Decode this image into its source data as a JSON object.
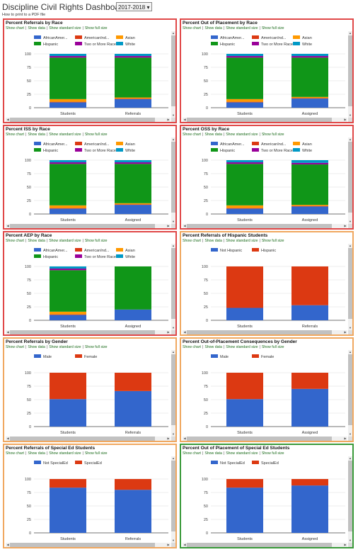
{
  "header": {
    "title": "Discipline Civil Rights Dashboard",
    "year_selected": "2017-2018",
    "pdf_link": "How to print to a PDF file"
  },
  "links": {
    "show_chart": "Show chart",
    "show_data": "Show data",
    "show_standard_size": "Show standard size",
    "show_full_size": "Show full size"
  },
  "colors": {
    "red_border": "#e04848",
    "orange_border": "#f0a860",
    "green_border": "#3a9a3a"
  },
  "panels": [
    {
      "title": "Percent Referrals by Race",
      "border": "red",
      "chart_data": {
        "type": "bar",
        "stacked": true,
        "categories": [
          "Students",
          "Referrals"
        ],
        "series": [
          {
            "name": "AfricanAmer...",
            "color": "#3366cc",
            "values": [
              10,
              16
            ]
          },
          {
            "name": "AmericanInd...",
            "color": "#dc3912",
            "values": [
              1,
              1
            ]
          },
          {
            "name": "Asian",
            "color": "#ff9900",
            "values": [
              5,
              2
            ]
          },
          {
            "name": "Hispanic",
            "color": "#109618",
            "values": [
              77,
              74
            ]
          },
          {
            "name": "Two or More Races",
            "color": "#990099",
            "values": [
              3,
              3
            ]
          },
          {
            "name": "White",
            "color": "#0099c6",
            "values": [
              4,
              4
            ]
          }
        ],
        "yticks": [
          0,
          25,
          50,
          75,
          100
        ],
        "ylim": [
          0,
          100
        ]
      }
    },
    {
      "title": "Percent Out of Placement by Race",
      "border": "red",
      "chart_data": {
        "type": "bar",
        "stacked": true,
        "categories": [
          "Students",
          "Assigned"
        ],
        "series": [
          {
            "name": "AfricanAmer...",
            "color": "#3366cc",
            "values": [
              10,
              17
            ]
          },
          {
            "name": "AmericanInd...",
            "color": "#dc3912",
            "values": [
              1,
              1
            ]
          },
          {
            "name": "Asian",
            "color": "#ff9900",
            "values": [
              5,
              2
            ]
          },
          {
            "name": "Hispanic",
            "color": "#109618",
            "values": [
              77,
              73
            ]
          },
          {
            "name": "Two or More Races",
            "color": "#990099",
            "values": [
              3,
              3
            ]
          },
          {
            "name": "White",
            "color": "#0099c6",
            "values": [
              4,
              4
            ]
          }
        ],
        "yticks": [
          0,
          25,
          50,
          75,
          100
        ],
        "ylim": [
          0,
          100
        ]
      }
    },
    {
      "title": "Percent ISS by Race",
      "border": "red",
      "chart_data": {
        "type": "bar",
        "stacked": true,
        "categories": [
          "Students",
          "Assigned"
        ],
        "series": [
          {
            "name": "AfricanAmer...",
            "color": "#3366cc",
            "values": [
              10,
              17
            ]
          },
          {
            "name": "AmericanInd...",
            "color": "#dc3912",
            "values": [
              1,
              1
            ]
          },
          {
            "name": "Asian",
            "color": "#ff9900",
            "values": [
              5,
              2
            ]
          },
          {
            "name": "Hispanic",
            "color": "#109618",
            "values": [
              77,
              73
            ]
          },
          {
            "name": "Two or More Races",
            "color": "#990099",
            "values": [
              3,
              3
            ]
          },
          {
            "name": "White",
            "color": "#0099c6",
            "values": [
              4,
              4
            ]
          }
        ],
        "yticks": [
          0,
          25,
          50,
          75,
          100
        ],
        "ylim": [
          0,
          100
        ]
      }
    },
    {
      "title": "Percent OSS by Race",
      "border": "red",
      "chart_data": {
        "type": "bar",
        "stacked": true,
        "categories": [
          "Students",
          "Assigned"
        ],
        "series": [
          {
            "name": "AfricanAmer...",
            "color": "#3366cc",
            "values": [
              10,
              14
            ]
          },
          {
            "name": "AmericanInd...",
            "color": "#dc3912",
            "values": [
              1,
              1
            ]
          },
          {
            "name": "Asian",
            "color": "#ff9900",
            "values": [
              5,
              2
            ]
          },
          {
            "name": "Hispanic",
            "color": "#109618",
            "values": [
              77,
              75
            ]
          },
          {
            "name": "Two or More Races",
            "color": "#990099",
            "values": [
              3,
              3
            ]
          },
          {
            "name": "White",
            "color": "#0099c6",
            "values": [
              4,
              5
            ]
          }
        ],
        "yticks": [
          0,
          25,
          50,
          75,
          100
        ],
        "ylim": [
          0,
          100
        ]
      }
    },
    {
      "title": "Percent AEP by Race",
      "border": "red",
      "chart_data": {
        "type": "bar",
        "stacked": true,
        "categories": [
          "Students",
          "Assigned"
        ],
        "series": [
          {
            "name": "AfricanAmer...",
            "color": "#3366cc",
            "values": [
              10,
              20
            ]
          },
          {
            "name": "AmericanInd...",
            "color": "#dc3912",
            "values": [
              1,
              0
            ]
          },
          {
            "name": "Asian",
            "color": "#ff9900",
            "values": [
              5,
              0
            ]
          },
          {
            "name": "Hispanic",
            "color": "#109618",
            "values": [
              77,
              80
            ]
          },
          {
            "name": "Two or More Races",
            "color": "#990099",
            "values": [
              3,
              0
            ]
          },
          {
            "name": "White",
            "color": "#0099c6",
            "values": [
              4,
              0
            ]
          }
        ],
        "yticks": [
          0,
          25,
          50,
          75,
          100
        ],
        "ylim": [
          0,
          100
        ]
      }
    },
    {
      "title": "Percent Referrals of Hispanic Students",
      "border": "orange",
      "chart_data": {
        "type": "bar",
        "stacked": true,
        "categories": [
          "Students",
          "Referrals"
        ],
        "series": [
          {
            "name": "Not Hispanic",
            "color": "#3366cc",
            "values": [
              23,
              28
            ]
          },
          {
            "name": "Hispanic",
            "color": "#dc3912",
            "values": [
              77,
              72
            ]
          }
        ],
        "yticks": [
          0,
          25,
          50,
          75,
          100
        ],
        "ylim": [
          0,
          100
        ]
      }
    },
    {
      "title": "Percent Referrals by Gender",
      "border": "orange",
      "chart_data": {
        "type": "bar",
        "stacked": true,
        "categories": [
          "Students",
          "Referrals"
        ],
        "series": [
          {
            "name": "Male",
            "color": "#3366cc",
            "values": [
              51,
              66
            ]
          },
          {
            "name": "Female",
            "color": "#dc3912",
            "values": [
              49,
              34
            ]
          }
        ],
        "yticks": [
          0,
          25,
          50,
          75,
          100
        ],
        "ylim": [
          0,
          100
        ]
      }
    },
    {
      "title": "Percent Out-of-Placement Consequences by Gender",
      "border": "orange",
      "chart_data": {
        "type": "bar",
        "stacked": true,
        "categories": [
          "Students",
          "Assigned"
        ],
        "series": [
          {
            "name": "Male",
            "color": "#3366cc",
            "values": [
              51,
              70
            ]
          },
          {
            "name": "Female",
            "color": "#dc3912",
            "values": [
              49,
              30
            ]
          }
        ],
        "yticks": [
          0,
          25,
          50,
          75,
          100
        ],
        "ylim": [
          0,
          100
        ]
      }
    },
    {
      "title": "Percent Referrals of Special Ed Students",
      "border": "orange",
      "chart_data": {
        "type": "bar",
        "stacked": true,
        "categories": [
          "Students",
          "Referrals"
        ],
        "series": [
          {
            "name": "Not SpecialEd",
            "color": "#3366cc",
            "values": [
              84,
              80
            ]
          },
          {
            "name": "SpecialEd",
            "color": "#dc3912",
            "values": [
              16,
              20
            ]
          }
        ],
        "yticks": [
          0,
          25,
          50,
          75,
          100
        ],
        "ylim": [
          0,
          100
        ]
      }
    },
    {
      "title": "Percent Out of Placement of Special Ed Students",
      "border": "green",
      "chart_data": {
        "type": "bar",
        "stacked": true,
        "categories": [
          "Students",
          "Assigned"
        ],
        "series": [
          {
            "name": "Not SpecialEd",
            "color": "#3366cc",
            "values": [
              84,
              88
            ]
          },
          {
            "name": "SpecialEd",
            "color": "#dc3912",
            "values": [
              16,
              12
            ]
          }
        ],
        "yticks": [
          0,
          25,
          50,
          75,
          100
        ],
        "ylim": [
          0,
          100
        ]
      }
    }
  ]
}
